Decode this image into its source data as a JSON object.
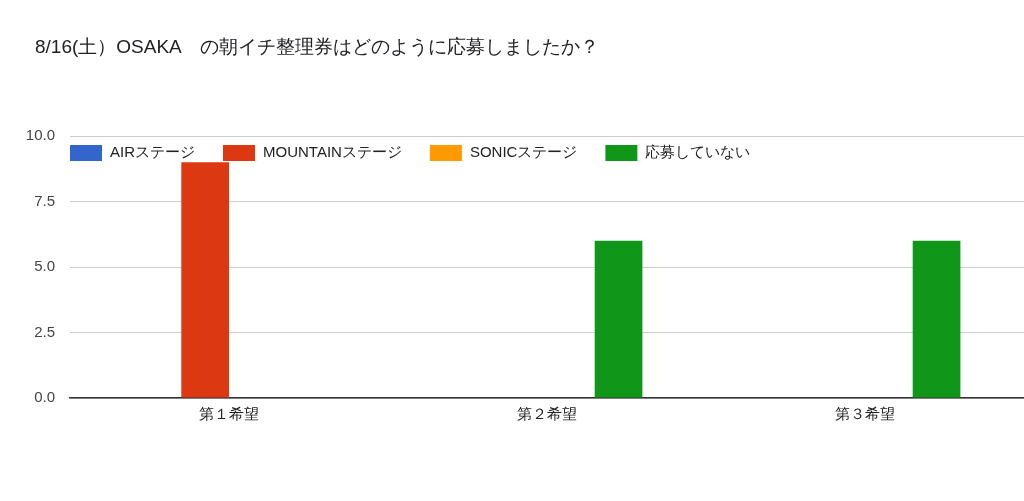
{
  "chart_data": {
    "type": "bar",
    "title": "8/16(土）OSAKA　の朝イチ整理券はどのように応募しましたか？",
    "categories": [
      "第１希望",
      "第２希望",
      "第３希望"
    ],
    "series": [
      {
        "name": "AIRステージ",
        "color": "#3366cc",
        "values": [
          0,
          0,
          0
        ]
      },
      {
        "name": "MOUNTAINステージ",
        "color": "#dc3912",
        "values": [
          9,
          0,
          0
        ]
      },
      {
        "name": "SONICステージ",
        "color": "#ff9900",
        "values": [
          0,
          0,
          0
        ]
      },
      {
        "name": "応募していない",
        "color": "#109618",
        "values": [
          0,
          6,
          6
        ]
      }
    ],
    "ylim": [
      0,
      10
    ],
    "yticks": [
      {
        "value": 0,
        "label": "0.0"
      },
      {
        "value": 2.5,
        "label": "2.5"
      },
      {
        "value": 5,
        "label": "5.0"
      },
      {
        "value": 7.5,
        "label": "7.5"
      },
      {
        "value": 10,
        "label": "10.0"
      }
    ],
    "grid": "y",
    "legend": "top left"
  }
}
